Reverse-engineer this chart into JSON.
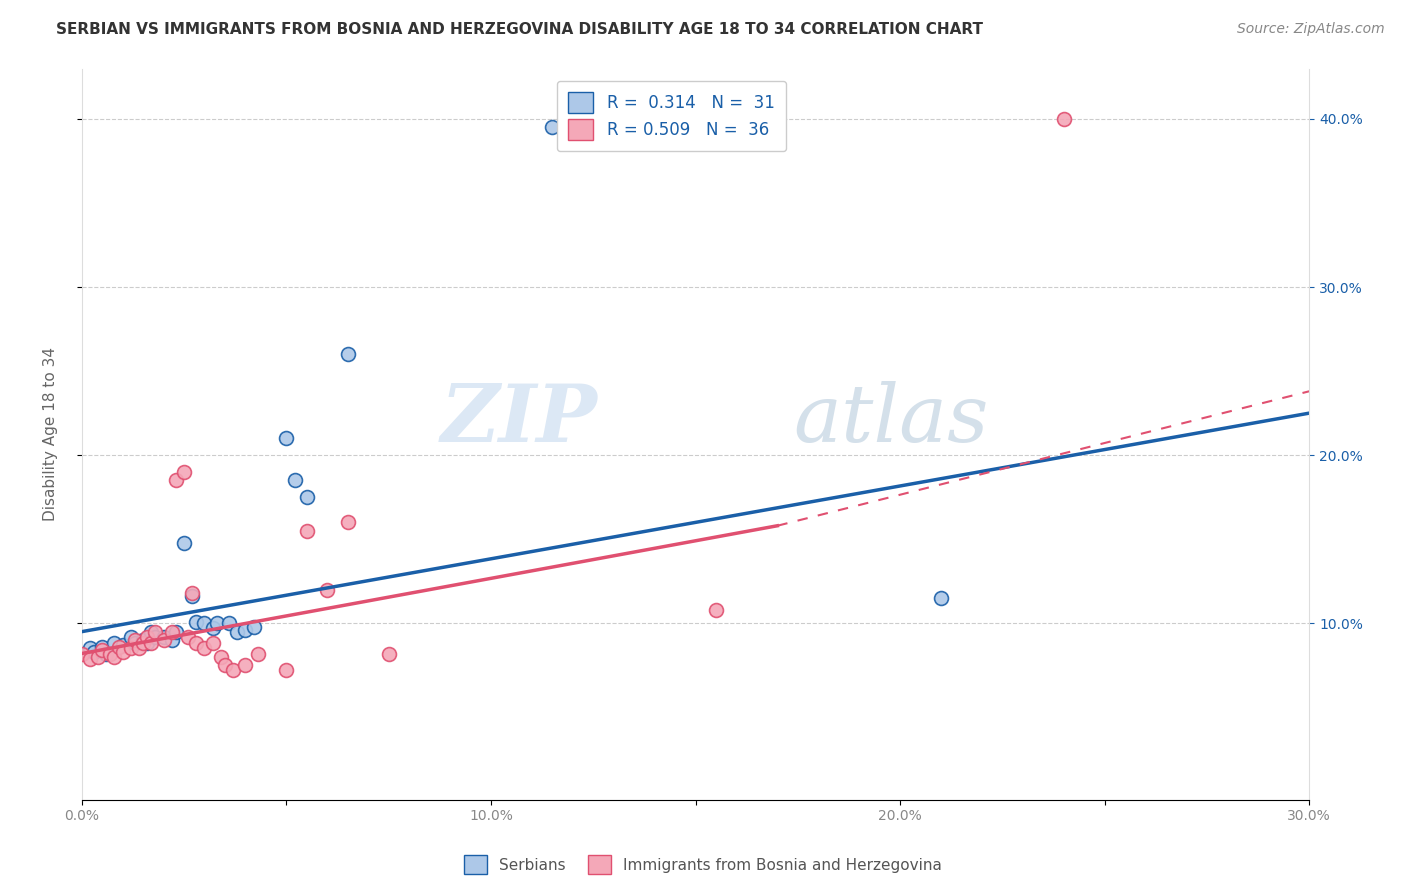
{
  "title": "SERBIAN VS IMMIGRANTS FROM BOSNIA AND HERZEGOVINA DISABILITY AGE 18 TO 34 CORRELATION CHART",
  "source": "Source: ZipAtlas.com",
  "ylabel": "Disability Age 18 to 34",
  "xlim": [
    0.0,
    0.3
  ],
  "ylim": [
    -0.005,
    0.43
  ],
  "xtick_labels": [
    "0.0%",
    "",
    "10.0%",
    "",
    "20.0%",
    "",
    "30.0%"
  ],
  "xtick_vals": [
    0.0,
    0.05,
    0.1,
    0.15,
    0.2,
    0.25,
    0.3
  ],
  "ytick_vals": [
    0.1,
    0.2,
    0.3,
    0.4
  ],
  "ytick_labels": [
    "10.0%",
    "20.0%",
    "30.0%",
    "40.0%"
  ],
  "grid_color": "#cccccc",
  "watermark_zip": "ZIP",
  "watermark_atlas": "atlas",
  "legend_line1": "R =  0.314   N =  31",
  "legend_line2": "R = 0.509   N =  36",
  "serbian_color": "#adc8e8",
  "serbian_color_line": "#1a5fa8",
  "bosnia_color": "#f4a8b8",
  "bosnia_color_line": "#e05070",
  "serbian_scatter": [
    [
      0.002,
      0.085
    ],
    [
      0.003,
      0.083
    ],
    [
      0.005,
      0.086
    ],
    [
      0.006,
      0.082
    ],
    [
      0.008,
      0.088
    ],
    [
      0.01,
      0.087
    ],
    [
      0.012,
      0.092
    ],
    [
      0.013,
      0.088
    ],
    [
      0.015,
      0.09
    ],
    [
      0.016,
      0.088
    ],
    [
      0.017,
      0.095
    ],
    [
      0.018,
      0.092
    ],
    [
      0.02,
      0.092
    ],
    [
      0.022,
      0.09
    ],
    [
      0.023,
      0.095
    ],
    [
      0.025,
      0.148
    ],
    [
      0.027,
      0.116
    ],
    [
      0.028,
      0.101
    ],
    [
      0.03,
      0.1
    ],
    [
      0.032,
      0.097
    ],
    [
      0.033,
      0.1
    ],
    [
      0.036,
      0.1
    ],
    [
      0.038,
      0.095
    ],
    [
      0.04,
      0.096
    ],
    [
      0.042,
      0.098
    ],
    [
      0.05,
      0.21
    ],
    [
      0.052,
      0.185
    ],
    [
      0.055,
      0.175
    ],
    [
      0.065,
      0.26
    ],
    [
      0.115,
      0.395
    ],
    [
      0.21,
      0.115
    ]
  ],
  "bosnia_scatter": [
    [
      0.0,
      0.082
    ],
    [
      0.002,
      0.079
    ],
    [
      0.004,
      0.08
    ],
    [
      0.005,
      0.084
    ],
    [
      0.007,
      0.082
    ],
    [
      0.008,
      0.08
    ],
    [
      0.009,
      0.086
    ],
    [
      0.01,
      0.083
    ],
    [
      0.012,
      0.085
    ],
    [
      0.013,
      0.09
    ],
    [
      0.014,
      0.085
    ],
    [
      0.015,
      0.088
    ],
    [
      0.016,
      0.092
    ],
    [
      0.017,
      0.088
    ],
    [
      0.018,
      0.095
    ],
    [
      0.02,
      0.09
    ],
    [
      0.022,
      0.095
    ],
    [
      0.023,
      0.185
    ],
    [
      0.025,
      0.19
    ],
    [
      0.026,
      0.092
    ],
    [
      0.027,
      0.118
    ],
    [
      0.028,
      0.088
    ],
    [
      0.03,
      0.085
    ],
    [
      0.032,
      0.088
    ],
    [
      0.034,
      0.08
    ],
    [
      0.035,
      0.075
    ],
    [
      0.037,
      0.072
    ],
    [
      0.04,
      0.075
    ],
    [
      0.043,
      0.082
    ],
    [
      0.05,
      0.072
    ],
    [
      0.055,
      0.155
    ],
    [
      0.06,
      0.12
    ],
    [
      0.065,
      0.16
    ],
    [
      0.075,
      0.082
    ],
    [
      0.155,
      0.108
    ],
    [
      0.24,
      0.4
    ]
  ],
  "serbian_line": [
    0.0,
    0.3,
    0.095,
    0.225
  ],
  "bosnia_line_solid": [
    0.0,
    0.17,
    0.082,
    0.158
  ],
  "bosnia_line_dashed": [
    0.17,
    0.3,
    0.158,
    0.238
  ],
  "title_fontsize": 11,
  "axis_label_fontsize": 11,
  "tick_fontsize": 10,
  "legend_fontsize": 12,
  "source_fontsize": 10,
  "marker_size": 100,
  "background_color": "#ffffff",
  "tick_color_right": "#1a5fa8",
  "tick_color_bottom": "#888888"
}
